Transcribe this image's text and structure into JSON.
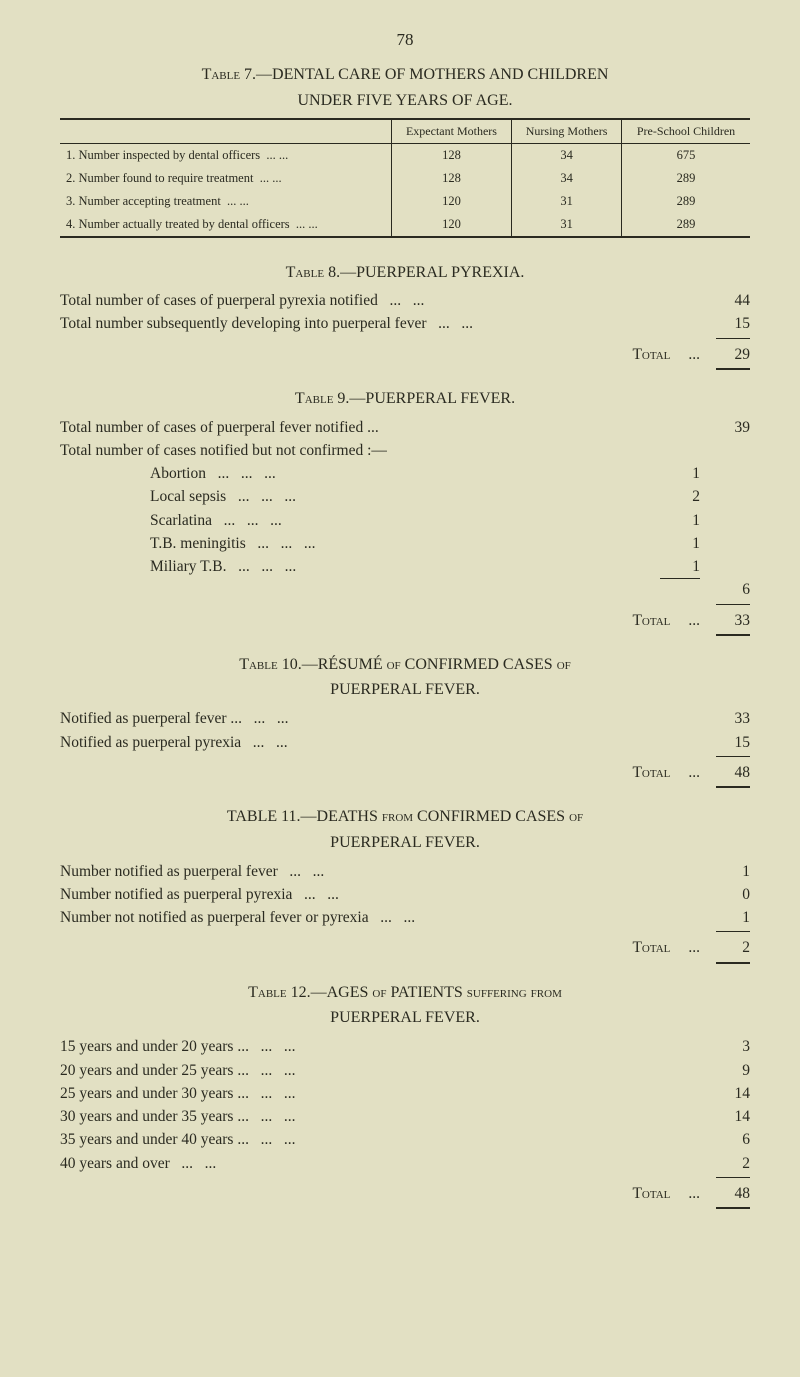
{
  "page_number": "78",
  "t7": {
    "title_line1": "Table 7.—DENTAL CARE OF MOTHERS AND CHILDREN",
    "title_line2": "UNDER FIVE YEARS OF AGE.",
    "headers": [
      "",
      "Expectant Mothers",
      "Nursing Mothers",
      "Pre-School Children"
    ],
    "rows": [
      {
        "n": "1.",
        "desc": "Number inspected by dental officers",
        "c1": "128",
        "c2": "34",
        "c3": "675"
      },
      {
        "n": "2.",
        "desc": "Number found to require treatment",
        "c1": "128",
        "c2": "34",
        "c3": "289"
      },
      {
        "n": "3.",
        "desc": "Number accepting treatment",
        "c1": "120",
        "c2": "31",
        "c3": "289"
      },
      {
        "n": "4.",
        "desc": "Number actually treated by dental officers",
        "c1": "120",
        "c2": "31",
        "c3": "289"
      }
    ]
  },
  "t8": {
    "title": "Table 8.—PUERPERAL PYREXIA.",
    "rows": [
      {
        "label": "Total number of cases of puerperal pyrexia notified",
        "val": "44"
      },
      {
        "label": "Total number subsequently developing into puerperal fever",
        "val": "15"
      }
    ],
    "total_label": "Total",
    "total_val": "29"
  },
  "t9": {
    "title": "Table 9.—PUERPERAL FEVER.",
    "line1": {
      "label": "Total number of cases of puerperal fever notified ...",
      "val": "39"
    },
    "line2": "Total number of cases notified but not confirmed :—",
    "sub": [
      {
        "label": "Abortion",
        "val": "1"
      },
      {
        "label": "Local sepsis",
        "val": "2"
      },
      {
        "label": "Scarlatina",
        "val": "1"
      },
      {
        "label": "T.B. meningitis",
        "val": "1"
      },
      {
        "label": "Miliary T.B.",
        "val": "1"
      }
    ],
    "sub_total": "6",
    "total_label": "Total",
    "total_val": "33"
  },
  "t10": {
    "title_l1": "Table 10.—RÉSUMÉ of CONFIRMED CASES of",
    "title_l2": "PUERPERAL FEVER.",
    "rows": [
      {
        "label": "Notified as puerperal fever ...",
        "val": "33"
      },
      {
        "label": "Notified as puerperal pyrexia",
        "val": "15"
      }
    ],
    "total_label": "Total",
    "total_val": "48"
  },
  "t11": {
    "title_l1": "TABLE 11.—DEATHS from CONFIRMED CASES of",
    "title_l2": "PUERPERAL FEVER.",
    "rows": [
      {
        "label": "Number notified as puerperal fever",
        "val": "1"
      },
      {
        "label": "Number notified as puerperal pyrexia",
        "val": "0"
      },
      {
        "label": "Number not notified as puerperal fever or pyrexia",
        "val": "1"
      }
    ],
    "total_label": "Total",
    "total_val": "2"
  },
  "t12": {
    "title_l1": "Table 12.—AGES of PATIENTS suffering from",
    "title_l2": "PUERPERAL FEVER.",
    "rows": [
      {
        "label": "15 years and under 20 years ...",
        "val": "3"
      },
      {
        "label": "20 years and under 25 years ...",
        "val": "9"
      },
      {
        "label": "25 years and under 30 years ...",
        "val": "14"
      },
      {
        "label": "30 years and under 35 years ...",
        "val": "14"
      },
      {
        "label": "35 years and under 40 years ...",
        "val": "6"
      },
      {
        "label": "40 years and over",
        "val": "2"
      }
    ],
    "total_label": "Total",
    "total_val": "48"
  }
}
